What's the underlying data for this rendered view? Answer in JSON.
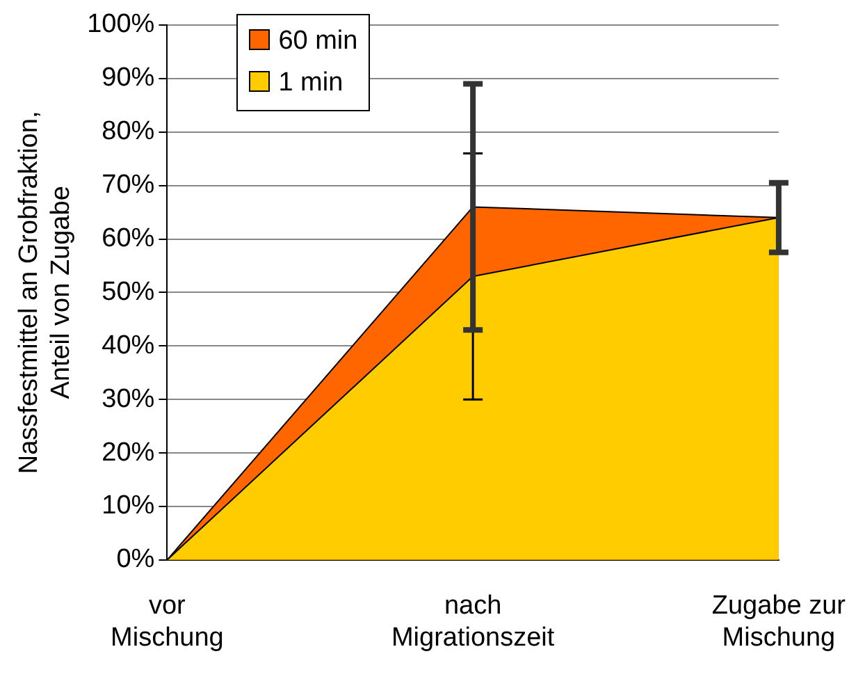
{
  "chart_data": {
    "type": "area",
    "ylabel": "Nassfestmittel an Grobfraktion, Anteil von Zugabe",
    "categories": [
      "vor Mischung",
      "nach Migrationszeit",
      "Zugabe zur Mischung"
    ],
    "series": [
      {
        "name": "60 min",
        "color": "#ff6600",
        "values": [
          0,
          66,
          64
        ],
        "errors": [
          null,
          23,
          6.5
        ]
      },
      {
        "name": "1 min",
        "color": "#ffcc00",
        "values": [
          0,
          53,
          64
        ],
        "errors": [
          null,
          23,
          null
        ]
      }
    ],
    "ylim": [
      0,
      100
    ],
    "yticks": [
      {
        "value": 0,
        "label": "0%"
      },
      {
        "value": 10,
        "label": "10%"
      },
      {
        "value": 20,
        "label": "20%"
      },
      {
        "value": 30,
        "label": "30%"
      },
      {
        "value": 40,
        "label": "40%"
      },
      {
        "value": 50,
        "label": "50%"
      },
      {
        "value": 60,
        "label": "60%"
      },
      {
        "value": 70,
        "label": "70%"
      },
      {
        "value": 80,
        "label": "80%"
      },
      {
        "value": 90,
        "label": "90%"
      },
      {
        "value": 100,
        "label": "100%"
      }
    ],
    "grid": "y",
    "legend": "top left"
  }
}
